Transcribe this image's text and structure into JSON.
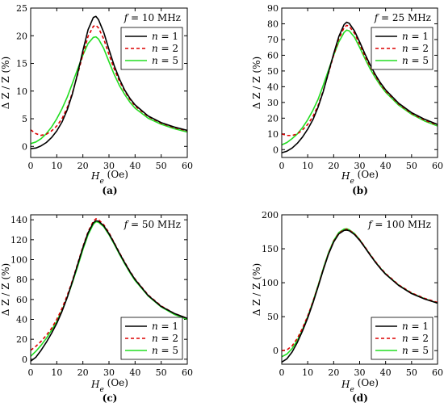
{
  "chart_data": [
    {
      "type": "line",
      "panel_label": "(a)",
      "annotation": "f = 10 MHz",
      "annotation_var": "f",
      "annotation_rest": " = 10 MHz",
      "xlabel": "H_e (Oe)",
      "ylabel": "Δ Z / Z (%)",
      "xlim": [
        0,
        60
      ],
      "ylim": [
        -2,
        25
      ],
      "xticks": [
        0,
        10,
        20,
        30,
        40,
        50,
        60
      ],
      "yticks": [
        0,
        5,
        10,
        15,
        20,
        25
      ],
      "legend": "top-right",
      "series": [
        {
          "name": "n = 1",
          "color": "#000000",
          "dash": "solid",
          "x": [
            0,
            2,
            4,
            6,
            8,
            10,
            12,
            14,
            16,
            18,
            20,
            22,
            24,
            25,
            26,
            28,
            30,
            32,
            34,
            36,
            38,
            40,
            45,
            50,
            55,
            60
          ],
          "y": [
            -0.4,
            -0.3,
            0.1,
            0.7,
            1.6,
            2.8,
            4.4,
            6.6,
            9.5,
            13.2,
            17.3,
            21.1,
            23.3,
            23.5,
            22.9,
            20.6,
            17.5,
            14.6,
            12.2,
            10.2,
            8.7,
            7.5,
            5.5,
            4.3,
            3.5,
            2.9
          ]
        },
        {
          "name": "n = 2",
          "color": "#dd0000",
          "dash": "dashed",
          "x": [
            0,
            2,
            4,
            6,
            8,
            10,
            12,
            14,
            16,
            18,
            20,
            22,
            24,
            25,
            26,
            28,
            30,
            32,
            34,
            36,
            38,
            40,
            45,
            50,
            55,
            60
          ],
          "y": [
            3.0,
            2.3,
            2.0,
            2.2,
            2.8,
            3.7,
            5.0,
            7.0,
            9.7,
            13.0,
            16.6,
            19.9,
            21.7,
            21.9,
            21.4,
            19.4,
            16.6,
            14.0,
            11.8,
            10.0,
            8.5,
            7.3,
            5.4,
            4.2,
            3.4,
            2.8
          ]
        },
        {
          "name": "n = 5",
          "color": "#22dd22",
          "dash": "solid",
          "x": [
            0,
            2,
            4,
            6,
            8,
            10,
            12,
            14,
            16,
            18,
            20,
            22,
            24,
            25,
            26,
            28,
            30,
            32,
            34,
            36,
            38,
            40,
            45,
            50,
            55,
            60
          ],
          "y": [
            0.5,
            0.8,
            1.4,
            2.3,
            3.5,
            5.0,
            6.8,
            8.9,
            11.4,
            14.0,
            16.5,
            18.6,
            19.7,
            19.8,
            19.4,
            17.7,
            15.3,
            13.0,
            11.0,
            9.4,
            8.0,
            6.9,
            5.1,
            4.0,
            3.2,
            2.6
          ]
        }
      ]
    },
    {
      "type": "line",
      "panel_label": "(b)",
      "annotation": "f = 25 MHz",
      "annotation_var": "f",
      "annotation_rest": " = 25 MHz",
      "xlabel": "H_e (Oe)",
      "ylabel": "Δ Z / Z (%)",
      "xlim": [
        0,
        60
      ],
      "ylim": [
        -5,
        90
      ],
      "xticks": [
        0,
        10,
        20,
        30,
        40,
        50,
        60
      ],
      "yticks": [
        0,
        10,
        20,
        30,
        40,
        50,
        60,
        70,
        80,
        90
      ],
      "legend": "top-right",
      "series": [
        {
          "name": "n = 1",
          "color": "#000000",
          "dash": "solid",
          "x": [
            0,
            2,
            4,
            6,
            8,
            10,
            12,
            14,
            16,
            18,
            20,
            22,
            24,
            25,
            26,
            28,
            30,
            32,
            34,
            36,
            38,
            40,
            45,
            50,
            55,
            60
          ],
          "y": [
            -2.0,
            -1.0,
            1.0,
            4.0,
            8.0,
            13.0,
            19.0,
            27.0,
            37.0,
            49.0,
            61.0,
            72.0,
            79.5,
            81.0,
            80.3,
            75.5,
            68.5,
            61.0,
            54.0,
            47.8,
            42.5,
            38.0,
            29.5,
            23.5,
            19.3,
            16.0
          ]
        },
        {
          "name": "n = 2",
          "color": "#dd0000",
          "dash": "dashed",
          "x": [
            0,
            2,
            4,
            6,
            8,
            10,
            12,
            14,
            16,
            18,
            20,
            22,
            24,
            25,
            26,
            28,
            30,
            32,
            34,
            36,
            38,
            40,
            45,
            50,
            55,
            60
          ],
          "y": [
            10.0,
            9.0,
            9.0,
            10.0,
            12.5,
            16.0,
            21.0,
            28.0,
            37.5,
            48.5,
            60.0,
            70.5,
            77.5,
            79.0,
            78.4,
            74.0,
            67.0,
            59.5,
            53.0,
            47.0,
            41.8,
            37.3,
            29.0,
            23.0,
            18.8,
            15.5
          ]
        },
        {
          "name": "n = 5",
          "color": "#22dd22",
          "dash": "solid",
          "x": [
            0,
            2,
            4,
            6,
            8,
            10,
            12,
            14,
            16,
            18,
            20,
            22,
            24,
            25,
            26,
            28,
            30,
            32,
            34,
            36,
            38,
            40,
            45,
            50,
            55,
            60
          ],
          "y": [
            3.0,
            4.5,
            7.0,
            10.0,
            14.0,
            19.0,
            25.0,
            32.0,
            41.0,
            50.5,
            60.0,
            68.5,
            74.5,
            76.0,
            75.5,
            71.5,
            65.0,
            58.0,
            51.5,
            45.8,
            40.8,
            36.5,
            28.3,
            22.5,
            18.2,
            15.0
          ]
        }
      ]
    },
    {
      "type": "line",
      "panel_label": "(c)",
      "annotation": "f = 50 MHz",
      "annotation_var": "f",
      "annotation_rest": " = 50 MHz",
      "xlabel": "H_e (Oe)",
      "ylabel": "Δ Z / Z (%)",
      "xlim": [
        0,
        60
      ],
      "ylim": [
        -5,
        145
      ],
      "xticks": [
        0,
        10,
        20,
        30,
        40,
        50,
        60
      ],
      "yticks": [
        0,
        20,
        40,
        60,
        80,
        100,
        120,
        140
      ],
      "legend": "bottom-right",
      "series": [
        {
          "name": "n = 1",
          "color": "#000000",
          "dash": "solid",
          "x": [
            0,
            2,
            4,
            6,
            8,
            10,
            12,
            14,
            16,
            18,
            20,
            22,
            24,
            25,
            26,
            28,
            30,
            32,
            34,
            36,
            38,
            40,
            45,
            50,
            55,
            60
          ],
          "y": [
            -2.0,
            2.0,
            9.0,
            17.0,
            26.0,
            36.0,
            48.0,
            62.0,
            78.0,
            95.0,
            112.0,
            127.0,
            137.0,
            139.0,
            138.5,
            134.0,
            126.0,
            116.5,
            106.5,
            97.0,
            88.0,
            80.0,
            64.0,
            53.0,
            46.0,
            41.0
          ]
        },
        {
          "name": "n = 2",
          "color": "#dd0000",
          "dash": "dashed",
          "x": [
            0,
            2,
            4,
            6,
            8,
            10,
            12,
            14,
            16,
            18,
            20,
            22,
            24,
            25,
            26,
            28,
            30,
            32,
            34,
            36,
            38,
            40,
            45,
            50,
            55,
            60
          ],
          "y": [
            9.0,
            13.0,
            18.0,
            24.0,
            31.0,
            40.0,
            51.0,
            64.0,
            79.0,
            96.0,
            113.0,
            128.0,
            138.5,
            141.0,
            140.0,
            135.0,
            127.0,
            117.0,
            107.0,
            97.5,
            88.5,
            80.5,
            64.5,
            53.5,
            46.0,
            41.0
          ]
        },
        {
          "name": "n = 5",
          "color": "#22dd22",
          "dash": "solid",
          "x": [
            0,
            2,
            4,
            6,
            8,
            10,
            12,
            14,
            16,
            18,
            20,
            22,
            24,
            25,
            26,
            28,
            30,
            32,
            34,
            36,
            38,
            40,
            45,
            50,
            55,
            60
          ],
          "y": [
            3.0,
            8.0,
            14.0,
            21.0,
            29.0,
            38.0,
            49.0,
            62.0,
            77.0,
            93.0,
            110.0,
            125.0,
            135.5,
            138.0,
            137.5,
            133.0,
            125.0,
            115.5,
            105.5,
            96.0,
            87.0,
            79.0,
            63.5,
            52.5,
            45.0,
            40.0
          ]
        }
      ]
    },
    {
      "type": "line",
      "panel_label": "(d)",
      "annotation": "f = 100 MHz",
      "annotation_var": "f",
      "annotation_rest": " = 100 MHz",
      "xlabel": "H_e (Oe)",
      "ylabel": "Δ Z / Z (%)",
      "xlim": [
        0,
        60
      ],
      "ylim": [
        -20,
        200
      ],
      "xticks": [
        0,
        10,
        20,
        30,
        40,
        50,
        60
      ],
      "yticks": [
        0,
        50,
        100,
        150,
        200
      ],
      "legend": "bottom-right",
      "series": [
        {
          "name": "n = 1",
          "color": "#000000",
          "dash": "solid",
          "x": [
            0,
            2,
            4,
            6,
            8,
            10,
            12,
            14,
            16,
            18,
            20,
            22,
            24,
            25,
            26,
            28,
            30,
            32,
            34,
            36,
            38,
            40,
            45,
            50,
            55,
            60
          ],
          "y": [
            -17.0,
            -12.0,
            -2.0,
            12.0,
            29.0,
            48.0,
            70.0,
            94.0,
            119.0,
            142.0,
            160.0,
            172.0,
            177.0,
            177.5,
            176.5,
            171.0,
            162.5,
            152.0,
            141.0,
            130.5,
            121.0,
            112.5,
            96.0,
            84.0,
            76.0,
            70.0
          ]
        },
        {
          "name": "n = 2",
          "color": "#dd0000",
          "dash": "dashed",
          "x": [
            0,
            2,
            4,
            6,
            8,
            10,
            12,
            14,
            16,
            18,
            20,
            22,
            24,
            25,
            26,
            28,
            30,
            32,
            34,
            36,
            38,
            40,
            45,
            50,
            55,
            60
          ],
          "y": [
            0.0,
            1.0,
            7.0,
            18.0,
            33.0,
            51.0,
            72.0,
            95.0,
            120.0,
            143.0,
            161.0,
            173.0,
            178.0,
            178.5,
            177.5,
            172.0,
            163.5,
            153.0,
            142.0,
            131.5,
            122.0,
            113.5,
            97.0,
            85.0,
            77.0,
            71.0
          ]
        },
        {
          "name": "n = 5",
          "color": "#22dd22",
          "dash": "solid",
          "x": [
            0,
            2,
            4,
            6,
            8,
            10,
            12,
            14,
            16,
            18,
            20,
            22,
            24,
            25,
            26,
            28,
            30,
            32,
            34,
            36,
            38,
            40,
            45,
            50,
            55,
            60
          ],
          "y": [
            -9.0,
            -5.0,
            3.0,
            15.0,
            31.0,
            50.0,
            72.0,
            96.0,
            121.0,
            144.0,
            162.0,
            174.0,
            179.0,
            179.5,
            178.0,
            172.5,
            163.5,
            152.5,
            141.5,
            131.0,
            121.5,
            113.0,
            96.5,
            84.5,
            76.5,
            70.0
          ]
        }
      ]
    }
  ]
}
